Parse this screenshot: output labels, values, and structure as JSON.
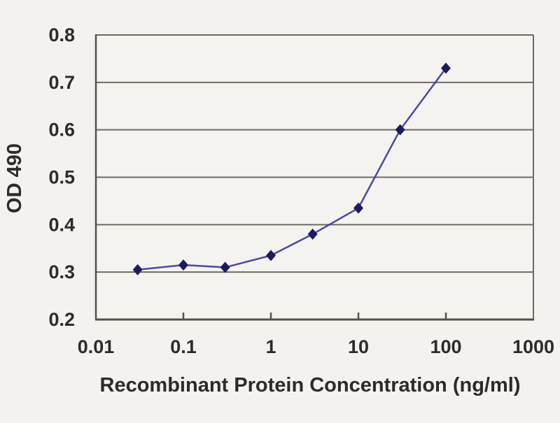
{
  "page": {
    "background_color": "#f4f2ee"
  },
  "chart_data": {
    "type": "line",
    "title": "",
    "xlabel": "Recombinant Protein Concentration (ng/ml)",
    "ylabel": "OD 490",
    "x_scale": "log",
    "y_scale": "linear",
    "xlim": [
      0.01,
      1000
    ],
    "ylim": [
      0.2,
      0.8
    ],
    "x_ticks": [
      0.01,
      0.1,
      1,
      10,
      100,
      1000
    ],
    "x_tick_labels": [
      "0.01",
      "0.1",
      "1",
      "10",
      "100",
      "1000"
    ],
    "y_ticks": [
      0.2,
      0.3,
      0.4,
      0.5,
      0.6,
      0.7,
      0.8
    ],
    "y_tick_labels": [
      "0.2",
      "0.3",
      "0.4",
      "0.5",
      "0.6",
      "0.7",
      "0.8"
    ],
    "grid": "horizontal-only",
    "legend": "none",
    "series": [
      {
        "marker": "diamond",
        "line_color": "#3b3b9c",
        "marker_color": "#1b1b5e",
        "x": [
          0.03,
          0.1,
          0.3,
          1,
          3,
          10,
          30,
          100
        ],
        "y": [
          0.305,
          0.315,
          0.31,
          0.335,
          0.38,
          0.435,
          0.6,
          0.73
        ]
      }
    ],
    "colors": {
      "axis": "#55504c",
      "grid": "#6e6a66",
      "text": "#2e2a28",
      "plot_background": "#f5f3f0"
    }
  }
}
